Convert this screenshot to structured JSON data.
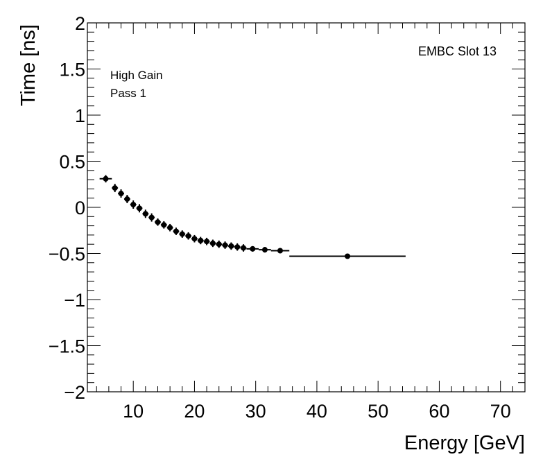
{
  "chart_data": {
    "type": "scatter",
    "title": "",
    "xlabel": "Energy [GeV]",
    "ylabel": "Time [ns]",
    "xlim": [
      2.5,
      74
    ],
    "ylim": [
      -2,
      2
    ],
    "x_major_ticks": [
      10,
      20,
      30,
      40,
      50,
      60,
      70
    ],
    "y_major_ticks": [
      -2,
      -1.5,
      -1,
      -0.5,
      0,
      0.5,
      1,
      1.5,
      2
    ],
    "y_tick_labels": [
      "−2",
      "−1.5",
      "−1",
      "−0.5",
      "0",
      "0.5",
      "1",
      "1.5",
      "2"
    ],
    "annotations": [
      "High Gain",
      "Pass 1",
      "EMBC Slot 13"
    ],
    "grid": false,
    "series": [
      {
        "name": "EMBC Slot 13",
        "points": [
          {
            "x": 5.5,
            "y": 0.31,
            "xerr": 1.0,
            "yerr": 0.04
          },
          {
            "x": 7.0,
            "y": 0.21,
            "xerr": 0.5,
            "yerr": 0.045
          },
          {
            "x": 8.0,
            "y": 0.15,
            "xerr": 0.5,
            "yerr": 0.045
          },
          {
            "x": 9.0,
            "y": 0.09,
            "xerr": 0.5,
            "yerr": 0.045
          },
          {
            "x": 10.0,
            "y": 0.03,
            "xerr": 0.5,
            "yerr": 0.045
          },
          {
            "x": 11.0,
            "y": -0.01,
            "xerr": 0.5,
            "yerr": 0.045
          },
          {
            "x": 12.0,
            "y": -0.07,
            "xerr": 0.5,
            "yerr": 0.045
          },
          {
            "x": 13.0,
            "y": -0.11,
            "xerr": 0.5,
            "yerr": 0.045
          },
          {
            "x": 14.0,
            "y": -0.16,
            "xerr": 0.5,
            "yerr": 0.04
          },
          {
            "x": 15.0,
            "y": -0.19,
            "xerr": 0.5,
            "yerr": 0.04
          },
          {
            "x": 16.0,
            "y": -0.22,
            "xerr": 0.5,
            "yerr": 0.04
          },
          {
            "x": 17.0,
            "y": -0.26,
            "xerr": 0.5,
            "yerr": 0.04
          },
          {
            "x": 18.0,
            "y": -0.29,
            "xerr": 0.5,
            "yerr": 0.04
          },
          {
            "x": 19.0,
            "y": -0.31,
            "xerr": 0.5,
            "yerr": 0.04
          },
          {
            "x": 20.0,
            "y": -0.34,
            "xerr": 0.5,
            "yerr": 0.04
          },
          {
            "x": 21.0,
            "y": -0.36,
            "xerr": 0.5,
            "yerr": 0.04
          },
          {
            "x": 22.0,
            "y": -0.37,
            "xerr": 0.5,
            "yerr": 0.04
          },
          {
            "x": 23.0,
            "y": -0.39,
            "xerr": 0.5,
            "yerr": 0.04
          },
          {
            "x": 24.0,
            "y": -0.4,
            "xerr": 0.5,
            "yerr": 0.04
          },
          {
            "x": 25.0,
            "y": -0.41,
            "xerr": 0.5,
            "yerr": 0.04
          },
          {
            "x": 26.0,
            "y": -0.42,
            "xerr": 0.5,
            "yerr": 0.04
          },
          {
            "x": 27.0,
            "y": -0.43,
            "xerr": 0.5,
            "yerr": 0.04
          },
          {
            "x": 28.0,
            "y": -0.44,
            "xerr": 0.5,
            "yerr": 0.04
          },
          {
            "x": 29.5,
            "y": -0.45,
            "xerr": 1.0,
            "yerr": 0.03
          },
          {
            "x": 31.5,
            "y": -0.46,
            "xerr": 1.0,
            "yerr": 0.03
          },
          {
            "x": 34.0,
            "y": -0.47,
            "xerr": 1.5,
            "yerr": 0.02
          },
          {
            "x": 45.0,
            "y": -0.53,
            "xerr": 9.5,
            "yerr": 0.0
          }
        ]
      }
    ]
  }
}
